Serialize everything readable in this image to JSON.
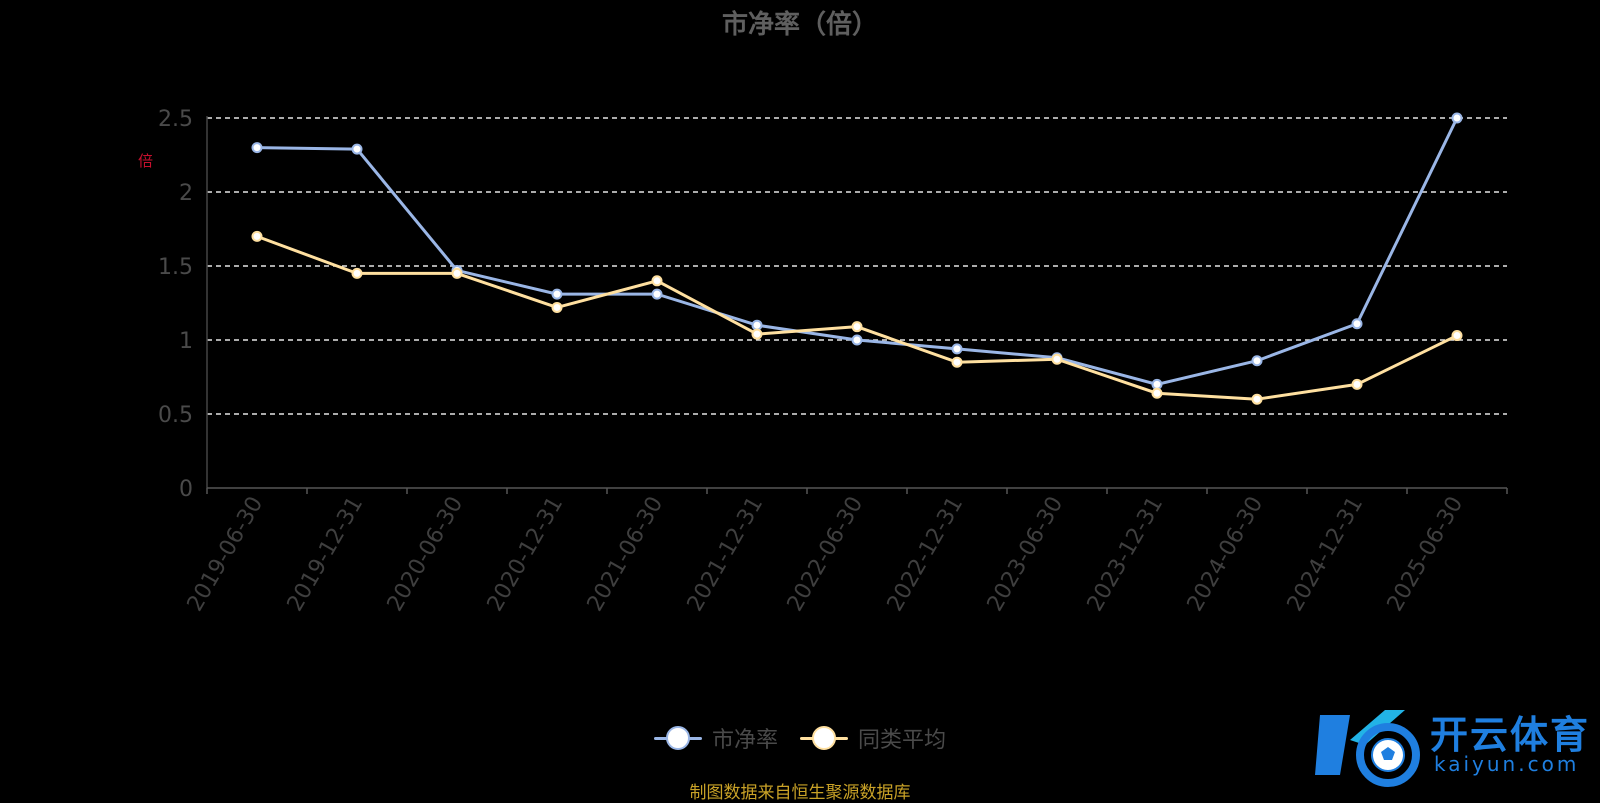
{
  "chart_data": {
    "type": "line",
    "title": "市净率（倍）",
    "y_unit_label": "倍",
    "categories": [
      "2019-06-30",
      "2019-12-31",
      "2020-06-30",
      "2020-12-31",
      "2021-06-30",
      "2021-12-31",
      "2022-06-30",
      "2022-12-31",
      "2023-06-30",
      "2023-12-31",
      "2024-06-30",
      "2024-12-31",
      "2025-06-30"
    ],
    "y_ticks": [
      "0",
      "0.5",
      "1",
      "1.5",
      "2",
      "2.5"
    ],
    "ylim": [
      0,
      2.5
    ],
    "grid": "dashed horizontal",
    "legend_position": "bottom-center",
    "series": [
      {
        "name": "市净率",
        "color": "#9ab6e6",
        "values": [
          2.3,
          2.29,
          1.47,
          1.31,
          1.31,
          1.1,
          1.0,
          0.94,
          0.88,
          0.7,
          0.86,
          1.11,
          2.5
        ]
      },
      {
        "name": "同类平均",
        "color": "#ffe0a0",
        "values": [
          1.7,
          1.45,
          1.45,
          1.22,
          1.4,
          1.04,
          1.09,
          0.85,
          0.87,
          0.64,
          0.6,
          0.7,
          1.03
        ]
      }
    ]
  },
  "source_note": "制图数据来自恒生聚源数据库",
  "watermark": {
    "brand": "开云体育",
    "domain": "kaiyun.com",
    "color": "#1f7fe0"
  }
}
